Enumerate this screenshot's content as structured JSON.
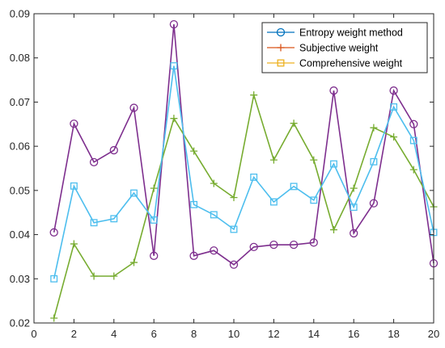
{
  "chart_data": {
    "type": "line",
    "title": "",
    "xlabel": "",
    "ylabel": "",
    "xlim": [
      0,
      20
    ],
    "ylim": [
      0.02,
      0.09
    ],
    "x_ticks": [
      "0",
      "2",
      "4",
      "6",
      "8",
      "10",
      "12",
      "14",
      "16",
      "18",
      "20"
    ],
    "y_ticks": [
      "0.02",
      "0.03",
      "0.04",
      "0.05",
      "0.06",
      "0.07",
      "0.08",
      "0.09"
    ],
    "grid": false,
    "legend_position": "top-right",
    "x": [
      1,
      2,
      3,
      4,
      5,
      6,
      7,
      8,
      9,
      10,
      11,
      12,
      13,
      14,
      15,
      16,
      17,
      18,
      19,
      20
    ],
    "series": [
      {
        "name": "Entropy weight method",
        "legend_color": "#0072BD",
        "color": "#7E2F8E",
        "marker": "circle",
        "values": [
          0.0405,
          0.0651,
          0.0564,
          0.0591,
          0.0687,
          0.0352,
          0.0876,
          0.0352,
          0.0364,
          0.0332,
          0.0372,
          0.0377,
          0.0377,
          0.0382,
          0.0726,
          0.0403,
          0.0471,
          0.0726,
          0.065,
          0.0335
        ]
      },
      {
        "name": "Subjective weight",
        "legend_color": "#D95319",
        "color": "#77AC30",
        "marker": "plus",
        "values": [
          0.0211,
          0.0379,
          0.0306,
          0.0306,
          0.0337,
          0.0505,
          0.0663,
          0.0589,
          0.0516,
          0.0484,
          0.0716,
          0.0569,
          0.0652,
          0.0569,
          0.0411,
          0.0505,
          0.0642,
          0.0621,
          0.0547,
          0.0463
        ]
      },
      {
        "name": "Comprehensive weight",
        "legend_color": "#EDB120",
        "color": "#4DBEEE",
        "marker": "square",
        "values": [
          0.03,
          0.051,
          0.0427,
          0.0436,
          0.0494,
          0.0433,
          0.0782,
          0.0468,
          0.0445,
          0.0412,
          0.053,
          0.0474,
          0.0509,
          0.0478,
          0.056,
          0.0462,
          0.0565,
          0.0689,
          0.0613,
          0.0405
        ]
      }
    ]
  }
}
